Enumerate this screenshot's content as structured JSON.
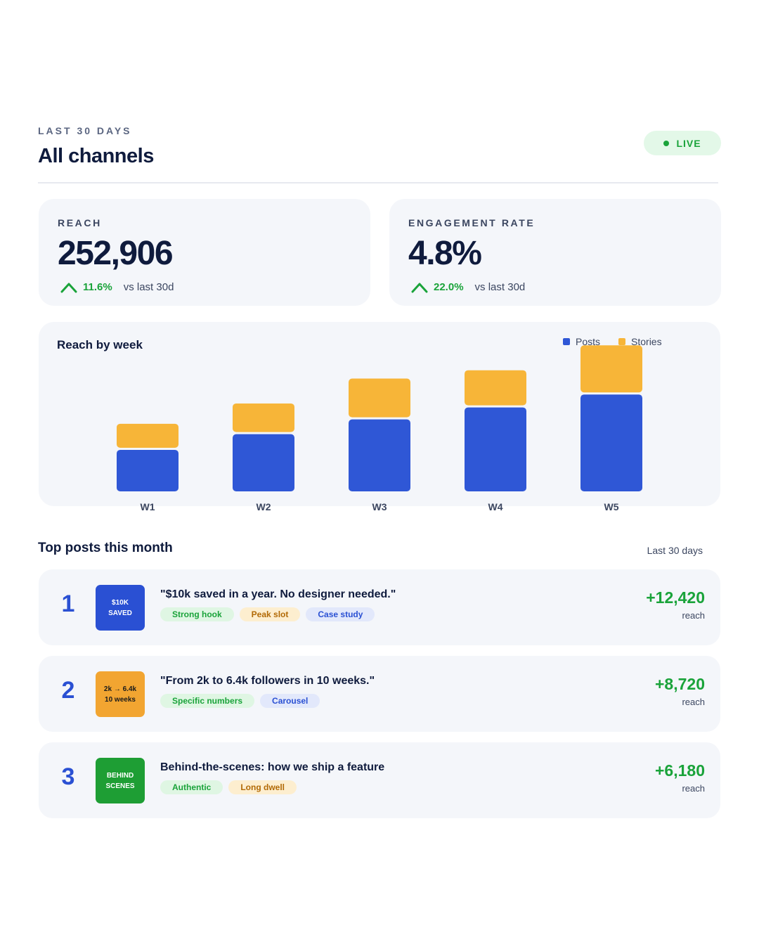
{
  "header": {
    "eyebrow": "LAST 30 DAYS",
    "title": "All channels",
    "live_label": "LIVE"
  },
  "kpis": [
    {
      "label": "REACH",
      "value": "252,906",
      "delta": "11.6%",
      "delta_sub": "vs last 30d"
    },
    {
      "label": "ENGAGEMENT RATE",
      "value": "4.8%",
      "delta": "22.0%",
      "delta_sub": "vs last 30d"
    }
  ],
  "chart_data": {
    "type": "bar",
    "stacked": true,
    "title": "Reach by week",
    "categories": [
      "W1",
      "W2",
      "W3",
      "W4",
      "W5"
    ],
    "series": [
      {
        "name": "Posts",
        "color": "#2f57d6",
        "values": [
          45,
          62,
          78,
          91,
          105
        ]
      },
      {
        "name": "Stories",
        "color": "#f7b538",
        "values": [
          26,
          31,
          42,
          38,
          51
        ]
      }
    ],
    "legend_position": "top-right",
    "grid": false,
    "ylim": [
      0,
      160
    ]
  },
  "top_posts": {
    "title": "Top posts this month",
    "period": "Last 30 days",
    "items": [
      {
        "rank": "1",
        "thumb_text": "$10K\nSAVED",
        "thumb_bg": "#2a50d3",
        "thumb_fg": "#ffffff",
        "title": "\"$10k saved in a year. No designer needed.\"",
        "tags": [
          {
            "label": "Strong hook",
            "style": "green"
          },
          {
            "label": "Peak slot",
            "style": "amber"
          },
          {
            "label": "Case study",
            "style": "blue"
          }
        ],
        "value": "+12,420",
        "unit": "reach"
      },
      {
        "rank": "2",
        "thumb_text": "2k → 6.4k\n10 weeks",
        "thumb_bg": "#f2a531",
        "thumb_fg": "#1b1b1b",
        "title": "\"From 2k to 6.4k followers in 10 weeks.\"",
        "tags": [
          {
            "label": "Specific numbers",
            "style": "green"
          },
          {
            "label": "Carousel",
            "style": "blue"
          }
        ],
        "value": "+8,720",
        "unit": "reach"
      },
      {
        "rank": "3",
        "thumb_text": "BEHIND\nSCENES",
        "thumb_bg": "#1e9e34",
        "thumb_fg": "#ffffff",
        "title": "Behind-the-scenes: how we ship a feature",
        "tags": [
          {
            "label": "Authentic",
            "style": "green"
          },
          {
            "label": "Long dwell",
            "style": "amber"
          }
        ],
        "value": "+6,180",
        "unit": "reach"
      }
    ]
  }
}
